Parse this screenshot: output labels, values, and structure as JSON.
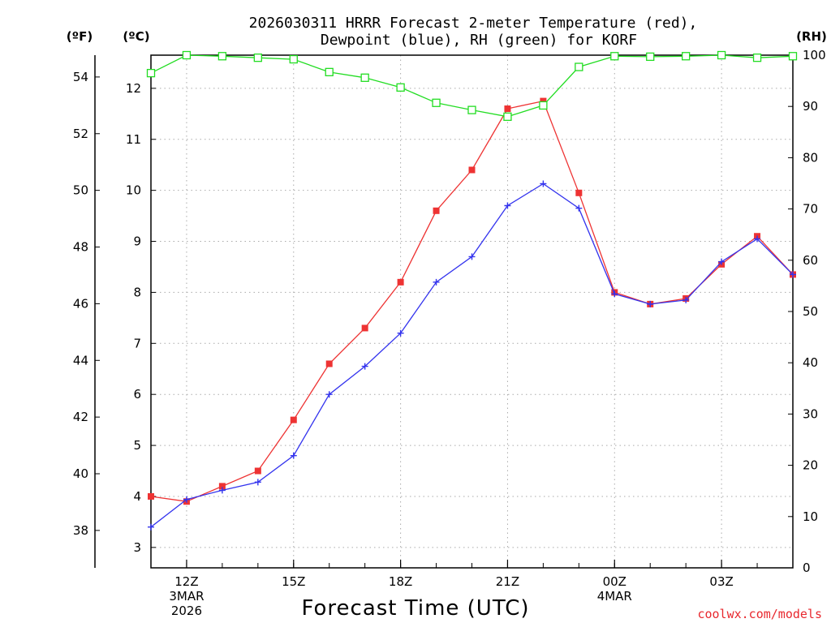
{
  "chart_data": {
    "type": "line",
    "title_line1": "2026030311 HRRR Forecast 2-meter Temperature (red),",
    "title_line2": "Dewpoint (blue), RH (green) for KORF",
    "xlabel": "Forecast Time (UTC)",
    "credit": "coolwx.com/models",
    "units": {
      "fahrenheit": "(ºF)",
      "celsius": "(ºC)",
      "rh": "(RH)"
    },
    "x_hours": [
      11,
      12,
      13,
      14,
      15,
      16,
      17,
      18,
      19,
      20,
      21,
      22,
      23,
      24,
      25,
      26,
      27,
      28,
      29
    ],
    "xlim": [
      11,
      29
    ],
    "celsius_lim": [
      2.6,
      12.65
    ],
    "rh_lim": [
      0,
      100
    ],
    "fahrenheit_ticks": [
      38,
      40,
      42,
      44,
      46,
      48,
      50,
      52,
      54
    ],
    "celsius_ticks": [
      3,
      4,
      5,
      6,
      7,
      8,
      9,
      10,
      11,
      12
    ],
    "rh_ticks": [
      0,
      10,
      20,
      30,
      40,
      50,
      60,
      70,
      80,
      90,
      100
    ],
    "x_ticks": [
      {
        "hour": 12,
        "lines": [
          "12Z",
          "3MAR",
          "2026"
        ]
      },
      {
        "hour": 15,
        "lines": [
          "15Z"
        ]
      },
      {
        "hour": 18,
        "lines": [
          "18Z"
        ]
      },
      {
        "hour": 21,
        "lines": [
          "21Z"
        ]
      },
      {
        "hour": 24,
        "lines": [
          "00Z",
          "4MAR"
        ]
      },
      {
        "hour": 27,
        "lines": [
          "03Z"
        ]
      }
    ],
    "series": [
      {
        "name": "Temperature",
        "unit": "C",
        "color": "#ee3333",
        "marker": "square-filled",
        "values": [
          4.0,
          3.9,
          4.2,
          4.5,
          5.5,
          6.6,
          7.3,
          8.2,
          9.6,
          10.4,
          11.6,
          11.75,
          9.95,
          8.0,
          7.77,
          7.88,
          8.55,
          9.1,
          8.35
        ]
      },
      {
        "name": "Dewpoint",
        "unit": "C",
        "color": "#3333ee",
        "marker": "plus",
        "values": [
          3.4,
          3.94,
          4.12,
          4.28,
          4.8,
          6.0,
          6.55,
          7.2,
          8.2,
          8.7,
          9.7,
          10.13,
          9.65,
          7.97,
          7.77,
          7.85,
          8.6,
          9.05,
          8.35
        ]
      },
      {
        "name": "RH",
        "unit": "%",
        "color": "#22dd22",
        "marker": "square-open",
        "values": [
          96.5,
          100.0,
          99.8,
          99.5,
          99.2,
          96.7,
          95.6,
          93.7,
          90.7,
          89.3,
          88.0,
          90.2,
          97.7,
          99.8,
          99.7,
          99.8,
          100.0,
          99.5,
          99.8
        ]
      }
    ]
  }
}
